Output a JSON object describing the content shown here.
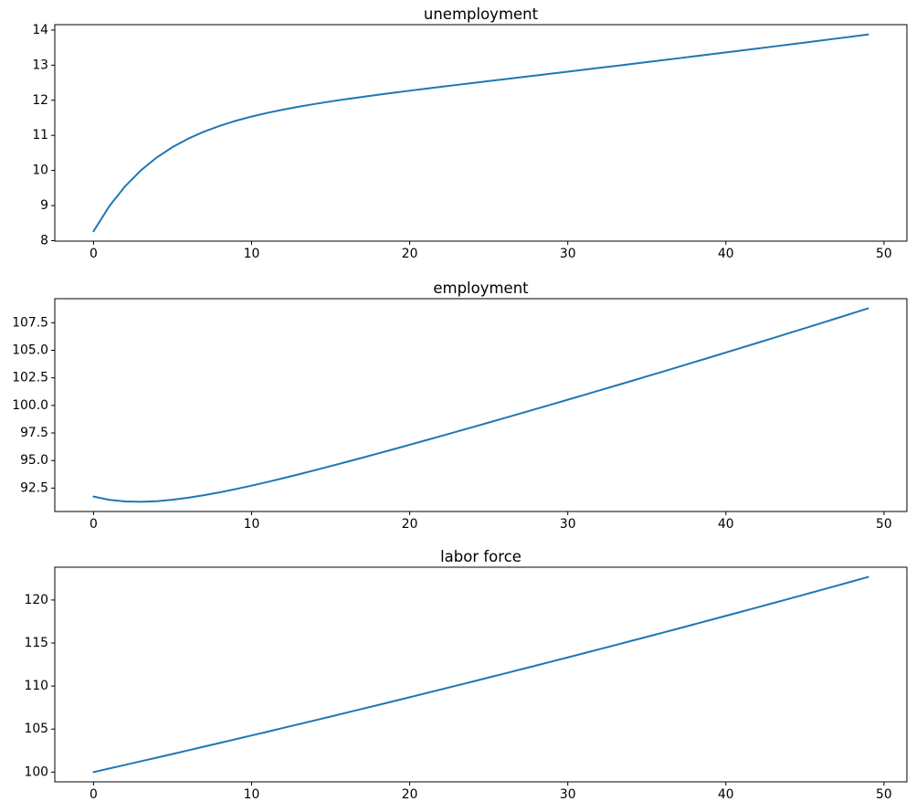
{
  "figure": {
    "background": "#ffffff",
    "axis_color": "#000000",
    "text_color": "#000000"
  },
  "chart_data": [
    {
      "type": "line",
      "title": "unemployment",
      "xlabel": "",
      "ylabel": "",
      "x_description": "time index t = 0..49",
      "values": [
        8.267,
        8.982,
        9.55,
        10.005,
        10.37,
        10.666,
        10.908,
        11.107,
        11.274,
        11.415,
        11.536,
        11.641,
        11.734,
        11.818,
        11.895,
        11.966,
        12.032,
        12.095,
        12.156,
        12.215,
        12.272,
        12.328,
        12.383,
        12.438,
        12.492,
        12.546,
        12.6,
        12.654,
        12.707,
        12.761,
        12.815,
        12.869,
        12.923,
        12.977,
        13.032,
        13.086,
        13.141,
        13.196,
        13.252,
        13.307,
        13.363,
        13.419,
        13.475,
        13.531,
        13.588,
        13.644,
        13.701,
        13.759,
        13.816,
        13.874
      ],
      "xlim": [
        -2.45,
        51.45
      ],
      "ylim": [
        7.986,
        14.154
      ],
      "xticks": [
        0,
        10,
        20,
        30,
        40,
        50
      ],
      "xtick_labels": [
        "0",
        "10",
        "20",
        "30",
        "40",
        "50"
      ],
      "yticks": [
        8,
        9,
        10,
        11,
        12,
        13,
        14
      ],
      "ytick_labels": [
        "8",
        "9",
        "10",
        "11",
        "12",
        "13",
        "14"
      ],
      "grid": false,
      "legend": null,
      "line_color": "#1f77b4",
      "line_width": 2
    },
    {
      "type": "line",
      "title": "employment",
      "xlabel": "",
      "ylabel": "",
      "x_description": "time index t = 0..49",
      "values": [
        91.733,
        91.436,
        91.287,
        91.254,
        91.312,
        91.441,
        91.626,
        91.856,
        92.119,
        92.411,
        92.724,
        93.054,
        93.399,
        93.754,
        94.119,
        94.491,
        94.87,
        95.253,
        95.641,
        96.033,
        96.429,
        96.827,
        97.228,
        97.631,
        98.037,
        98.445,
        98.855,
        99.267,
        99.681,
        100.097,
        100.515,
        100.935,
        101.357,
        101.78,
        102.205,
        102.632,
        103.061,
        103.492,
        103.925,
        104.359,
        104.795,
        105.233,
        105.673,
        106.115,
        106.558,
        107.003,
        107.451,
        107.9,
        108.351,
        108.804
      ],
      "xlim": [
        -2.45,
        51.45
      ],
      "ylim": [
        90.377,
        109.681
      ],
      "xticks": [
        0,
        10,
        20,
        30,
        40,
        50
      ],
      "xtick_labels": [
        "0",
        "10",
        "20",
        "30",
        "40",
        "50"
      ],
      "yticks": [
        92.5,
        95.0,
        97.5,
        100.0,
        102.5,
        105.0,
        107.5
      ],
      "ytick_labels": [
        "92.5",
        "95.0",
        "97.5",
        "100.0",
        "102.5",
        "105.0",
        "107.5"
      ],
      "grid": false,
      "legend": null,
      "line_color": "#1f77b4",
      "line_width": 2
    },
    {
      "type": "line",
      "title": "labor force",
      "xlabel": "",
      "ylabel": "",
      "x_description": "time index t = 0..49",
      "values": [
        100.0,
        100.418,
        100.838,
        101.259,
        101.682,
        102.107,
        102.534,
        102.963,
        103.393,
        103.825,
        104.259,
        104.695,
        105.133,
        105.572,
        106.014,
        106.457,
        106.902,
        107.349,
        107.797,
        108.248,
        108.7,
        109.155,
        109.611,
        110.069,
        110.529,
        110.991,
        111.455,
        111.921,
        112.389,
        112.859,
        113.33,
        113.804,
        114.28,
        114.758,
        115.237,
        115.719,
        116.203,
        116.688,
        117.176,
        117.666,
        118.158,
        118.652,
        119.148,
        119.646,
        120.146,
        120.648,
        121.152,
        121.659,
        122.167,
        122.678
      ],
      "xlim": [
        -2.45,
        51.45
      ],
      "ylim": [
        98.866,
        123.812
      ],
      "xticks": [
        0,
        10,
        20,
        30,
        40,
        50
      ],
      "xtick_labels": [
        "0",
        "10",
        "20",
        "30",
        "40",
        "50"
      ],
      "yticks": [
        100,
        105,
        110,
        115,
        120
      ],
      "ytick_labels": [
        "100",
        "105",
        "110",
        "115",
        "120"
      ],
      "grid": false,
      "legend": null,
      "line_color": "#1f77b4",
      "line_width": 2
    }
  ]
}
